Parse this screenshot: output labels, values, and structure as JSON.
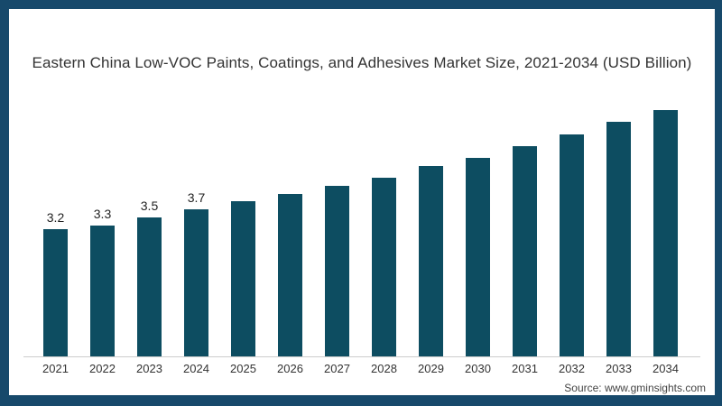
{
  "title": "Eastern China Low-VOC Paints, Coatings, and Adhesives Market Size, 2021-2034 (USD Billion)",
  "source": "Source: www.gminsights.com",
  "colors": {
    "frame_border": "#17496b",
    "bar": "#0d4d61",
    "axis_line": "#cccccc",
    "title_text": "#333333",
    "tick_text": "#333333",
    "label_text": "#222222",
    "background": "#ffffff"
  },
  "chart_data": {
    "type": "bar",
    "title": "Eastern China Low-VOC Paints, Coatings, and Adhesives Market Size, 2021-2034 (USD Billion)",
    "categories": [
      "2021",
      "2022",
      "2023",
      "2024",
      "2025",
      "2026",
      "2027",
      "2028",
      "2029",
      "2030",
      "2031",
      "2032",
      "2033",
      "2034"
    ],
    "values": [
      3.2,
      3.3,
      3.5,
      3.7,
      3.9,
      4.1,
      4.3,
      4.5,
      4.8,
      5.0,
      5.3,
      5.6,
      5.9,
      6.2
    ],
    "data_labels": [
      "3.2",
      "3.3",
      "3.5",
      "3.7",
      "",
      "",
      "",
      "",
      "",
      "",
      "",
      "",
      "",
      ""
    ],
    "xlabel": "",
    "ylabel": "",
    "ylim": [
      0,
      6.5
    ],
    "grid": false,
    "legend": false,
    "bar_color": "#0d4d61",
    "axis_line_color": "#cccccc"
  }
}
